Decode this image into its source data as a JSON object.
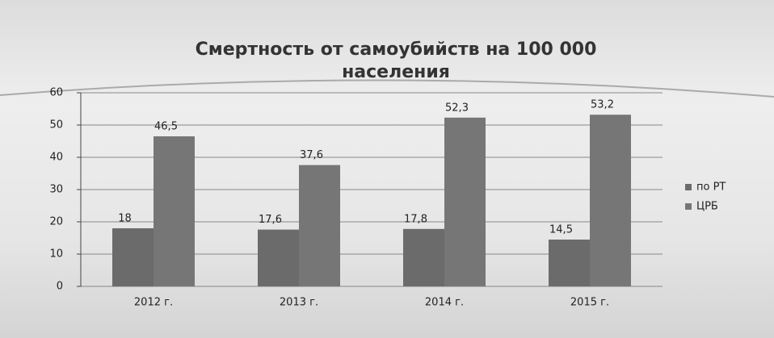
{
  "chart_data": {
    "type": "bar",
    "title": "Смертность от самоубийств на 100 000 населения",
    "categories": [
      "2012 г.",
      "2013 г.",
      "2014 г.",
      "2015 г."
    ],
    "series": [
      {
        "name": "по РТ",
        "color": "#6b6b6b",
        "values": [
          18,
          17.6,
          17.8,
          14.5
        ],
        "value_labels": [
          "18",
          "17,6",
          "17,8",
          "14,5"
        ]
      },
      {
        "name": "ЦРБ",
        "color": "#767676",
        "values": [
          46.5,
          37.6,
          52.3,
          53.2
        ],
        "value_labels": [
          "46,5",
          "37,6",
          "52,3",
          "53,2"
        ]
      }
    ],
    "ylim": [
      0,
      60
    ],
    "yticks": [
      0,
      10,
      20,
      30,
      40,
      50,
      60
    ],
    "grid": true,
    "legend": "right"
  }
}
